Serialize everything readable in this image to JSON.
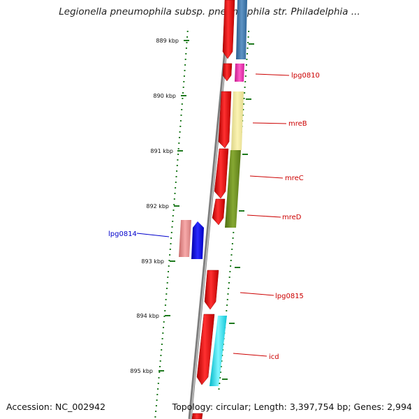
{
  "title": "Legionella pneumophila subsp. pneumophila str. Philadelphia ...",
  "footer": {
    "accession": "Accession: NC_002942",
    "summary": "Topology: circular; Length: 3,397,754 bp; Genes: 2,994"
  },
  "colors": {
    "backbone": "#8a8a8a",
    "tick": "#1f7a1f",
    "forward_label": "#cc0000",
    "reverse_label": "#0000cc"
  },
  "ticks": [
    {
      "label": "889 kbp"
    },
    {
      "label": "890 kbp"
    },
    {
      "label": "891 kbp"
    },
    {
      "label": "892 kbp"
    },
    {
      "label": "893 kbp"
    },
    {
      "label": "894 kbp"
    },
    {
      "label": "895 kbp"
    }
  ],
  "gene_labels": [
    {
      "id": "g0810",
      "text": "lpg0810",
      "color": "#cc0000"
    },
    {
      "id": "gmreB",
      "text": "mreB",
      "color": "#cc0000"
    },
    {
      "id": "gmreC",
      "text": "mreC",
      "color": "#cc0000"
    },
    {
      "id": "gmreD",
      "text": "mreD",
      "color": "#cc0000"
    },
    {
      "id": "g0814",
      "text": "lpg0814",
      "color": "#0000cc"
    },
    {
      "id": "g0815",
      "text": "lpg0815",
      "color": "#cc0000"
    },
    {
      "id": "gicd",
      "text": "icd",
      "color": "#cc0000"
    }
  ]
}
